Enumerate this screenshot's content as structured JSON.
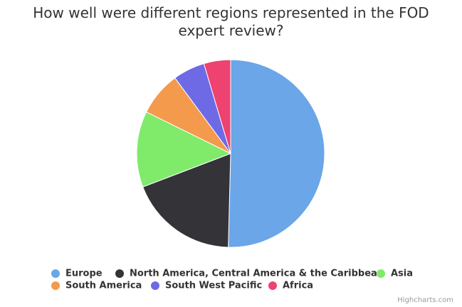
{
  "chart_data": {
    "type": "pie",
    "title": "How well were different regions represented in the FOD expert review?",
    "categories": [
      "Europe",
      "North America, Central America & the Caribbean",
      "Asia",
      "South America",
      "South West Pacific",
      "Africa"
    ],
    "values": [
      50.4,
      18.8,
      13.1,
      7.6,
      5.5,
      4.6
    ],
    "colors": [
      "#6aa6e8",
      "#333338",
      "#80ea6b",
      "#f39a4c",
      "#6e6ae6",
      "#ee4270"
    ],
    "credits": "Highcharts.com"
  }
}
